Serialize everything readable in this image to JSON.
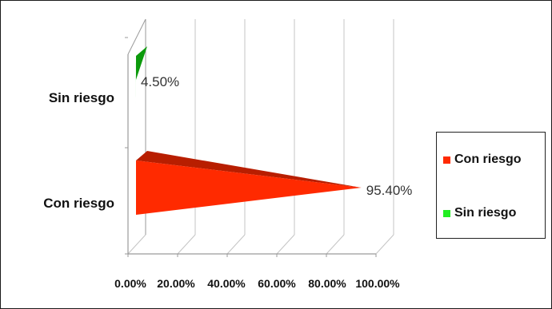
{
  "chart_data": {
    "type": "bar",
    "orientation": "horizontal",
    "style": "3d-cone",
    "categories": [
      "Con riesgo",
      "Sin riesgo"
    ],
    "series": [
      {
        "category": "Con riesgo",
        "value": 95.4,
        "label": "95.40%",
        "color": "#ff2a00"
      },
      {
        "category": "Sin riesgo",
        "value": 4.5,
        "label": "4.50%",
        "color": "#22ee22"
      }
    ],
    "x_ticks": [
      "0.00%",
      "20.00%",
      "40.00%",
      "60.00%",
      "80.00%",
      "100.00%"
    ],
    "xlim": [
      0,
      100
    ],
    "grid": true,
    "legend_position": "right",
    "legend": [
      {
        "label": "Con riesgo",
        "color": "#ff2a00"
      },
      {
        "label": "Sin riesgo",
        "color": "#22ee22"
      }
    ]
  }
}
